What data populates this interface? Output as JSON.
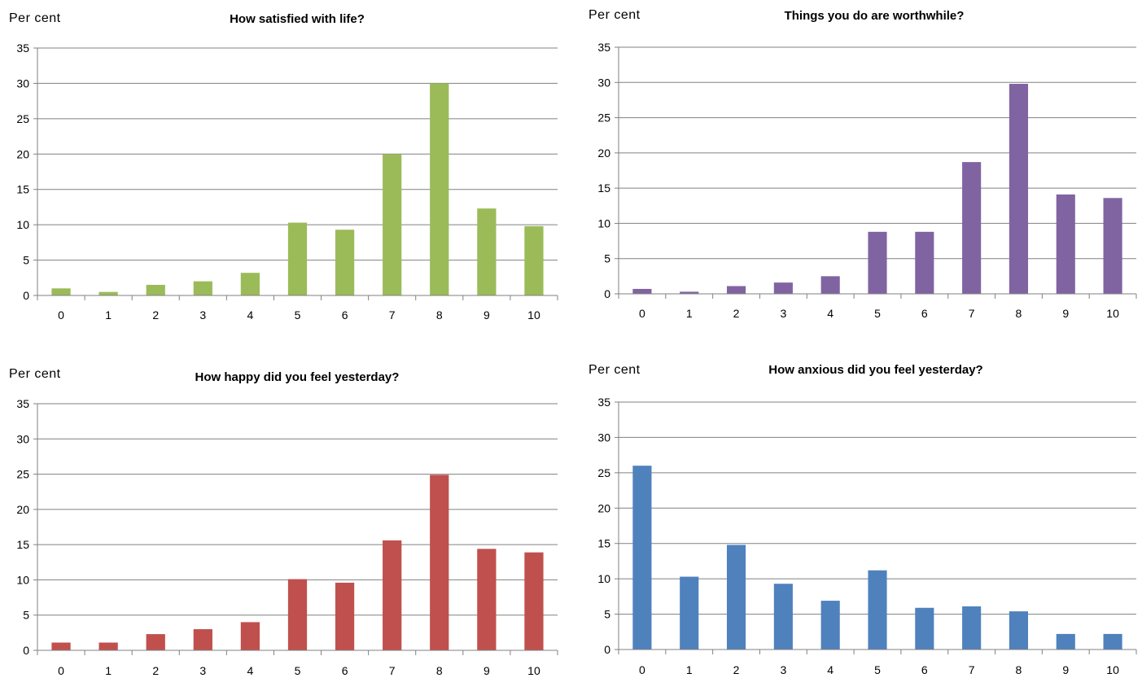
{
  "chart_data": [
    {
      "type": "bar",
      "title": "How satisfied with life?",
      "ylabel": "Per cent",
      "xlabel": "",
      "categories": [
        "0",
        "1",
        "2",
        "3",
        "4",
        "5",
        "6",
        "7",
        "8",
        "9",
        "10"
      ],
      "values": [
        1.0,
        0.5,
        1.5,
        2.0,
        3.2,
        10.3,
        9.3,
        20.0,
        30.0,
        12.3,
        9.8
      ],
      "ylim": [
        0,
        35
      ],
      "yticks": [
        "0",
        "5",
        "10",
        "15",
        "20",
        "25",
        "30",
        "35"
      ],
      "grid": true,
      "color": "#9BBB59"
    },
    {
      "type": "bar",
      "title": "Things you do are worthwhile?",
      "ylabel": "Per cent",
      "xlabel": "",
      "categories": [
        "0",
        "1",
        "2",
        "3",
        "4",
        "5",
        "6",
        "7",
        "8",
        "9",
        "10"
      ],
      "values": [
        0.7,
        0.3,
        1.1,
        1.6,
        2.5,
        8.8,
        8.8,
        18.7,
        29.8,
        14.1,
        13.6
      ],
      "ylim": [
        0,
        35
      ],
      "yticks": [
        "0",
        "5",
        "10",
        "15",
        "20",
        "25",
        "30",
        "35"
      ],
      "grid": true,
      "color": "#8064A2"
    },
    {
      "type": "bar",
      "title": "How happy did you feel yesterday?",
      "ylabel": "Per cent",
      "xlabel": "",
      "categories": [
        "0",
        "1",
        "2",
        "3",
        "4",
        "5",
        "6",
        "7",
        "8",
        "9",
        "10"
      ],
      "values": [
        1.1,
        1.1,
        2.3,
        3.0,
        4.0,
        10.1,
        9.6,
        15.6,
        24.9,
        14.4,
        13.9
      ],
      "ylim": [
        0,
        35
      ],
      "yticks": [
        "0",
        "5",
        "10",
        "15",
        "20",
        "25",
        "30",
        "35"
      ],
      "grid": true,
      "color": "#C0504D"
    },
    {
      "type": "bar",
      "title": "How anxious did you feel yesterday?",
      "ylabel": "Per cent",
      "xlabel": "",
      "categories": [
        "0",
        "1",
        "2",
        "3",
        "4",
        "5",
        "6",
        "7",
        "8",
        "9",
        "10"
      ],
      "values": [
        26.0,
        10.3,
        14.8,
        9.3,
        6.9,
        11.2,
        5.9,
        6.1,
        5.4,
        2.2,
        2.2
      ],
      "ylim": [
        0,
        35
      ],
      "yticks": [
        "0",
        "5",
        "10",
        "15",
        "20",
        "25",
        "30",
        "35"
      ],
      "grid": true,
      "color": "#4F81BD"
    }
  ]
}
